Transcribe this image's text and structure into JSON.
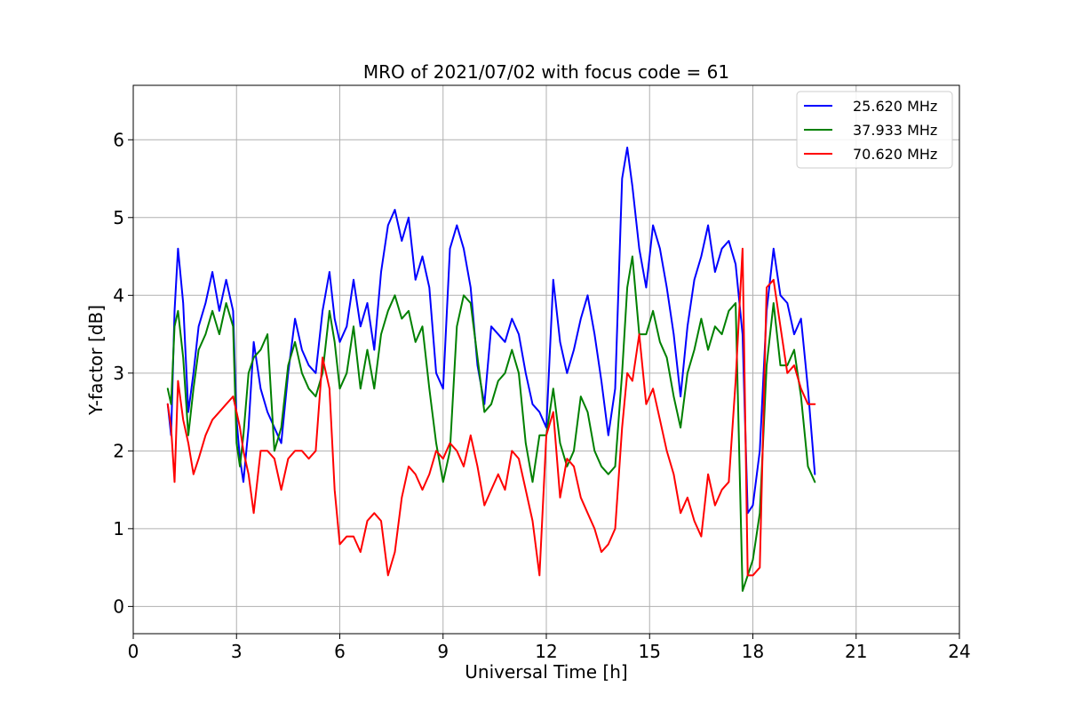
{
  "chart_data": {
    "type": "line",
    "title": "MRO of 2021/07/02 with focus code = 61",
    "xlabel": "Universal Time [h]",
    "ylabel": "Y-factor [dB]",
    "xlim": [
      0,
      24
    ],
    "ylim": [
      -0.35,
      6.7
    ],
    "xticks": [
      0,
      3,
      6,
      9,
      12,
      15,
      18,
      21,
      24
    ],
    "yticks": [
      0,
      1,
      2,
      3,
      4,
      5,
      6
    ],
    "grid": true,
    "legend_position": "top-right",
    "series": [
      {
        "name": "25.620 MHz",
        "color": "#0000ff",
        "x": [
          1.0,
          1.1,
          1.2,
          1.3,
          1.45,
          1.6,
          1.75,
          1.9,
          2.1,
          2.3,
          2.5,
          2.7,
          2.9,
          3.0,
          3.1,
          3.2,
          3.35,
          3.5,
          3.7,
          3.9,
          4.1,
          4.3,
          4.5,
          4.7,
          4.9,
          5.1,
          5.3,
          5.5,
          5.7,
          5.85,
          6.0,
          6.2,
          6.4,
          6.6,
          6.8,
          7.0,
          7.2,
          7.4,
          7.6,
          7.8,
          8.0,
          8.2,
          8.4,
          8.6,
          8.8,
          9.0,
          9.2,
          9.4,
          9.6,
          9.8,
          10.0,
          10.2,
          10.4,
          10.6,
          10.8,
          11.0,
          11.2,
          11.4,
          11.6,
          11.8,
          12.0,
          12.2,
          12.4,
          12.6,
          12.8,
          13.0,
          13.2,
          13.4,
          13.6,
          13.8,
          14.0,
          14.2,
          14.35,
          14.5,
          14.7,
          14.9,
          15.1,
          15.3,
          15.5,
          15.7,
          15.9,
          16.1,
          16.3,
          16.5,
          16.7,
          16.9,
          17.1,
          17.3,
          17.5,
          17.7,
          17.85,
          18.0,
          18.2,
          18.4,
          18.6,
          18.8,
          19.0,
          19.2,
          19.4,
          19.6,
          19.8
        ],
        "values": [
          2.6,
          2.2,
          3.8,
          4.6,
          3.9,
          2.5,
          3.0,
          3.6,
          3.9,
          4.3,
          3.8,
          4.2,
          3.8,
          2.4,
          1.9,
          1.6,
          2.3,
          3.4,
          2.8,
          2.5,
          2.3,
          2.1,
          3.0,
          3.7,
          3.3,
          3.1,
          3.0,
          3.8,
          4.3,
          3.7,
          3.4,
          3.6,
          4.2,
          3.6,
          3.9,
          3.3,
          4.3,
          4.9,
          5.1,
          4.7,
          5.0,
          4.2,
          4.5,
          4.1,
          3.0,
          2.8,
          4.6,
          4.9,
          4.6,
          4.1,
          3.1,
          2.6,
          3.6,
          3.5,
          3.4,
          3.7,
          3.5,
          3.0,
          2.6,
          2.5,
          2.3,
          4.2,
          3.4,
          3.0,
          3.3,
          3.7,
          4.0,
          3.5,
          2.9,
          2.2,
          2.8,
          5.5,
          5.9,
          5.4,
          4.6,
          4.1,
          4.9,
          4.6,
          4.1,
          3.5,
          2.7,
          3.6,
          4.2,
          4.5,
          4.9,
          4.3,
          4.6,
          4.7,
          4.4,
          3.5,
          1.2,
          1.3,
          2.0,
          3.8,
          4.6,
          4.0,
          3.9,
          3.5,
          3.7,
          2.8,
          1.7
        ]
      },
      {
        "name": "37.933 MHz",
        "color": "#008000",
        "x": [
          1.0,
          1.1,
          1.2,
          1.3,
          1.45,
          1.6,
          1.75,
          1.9,
          2.1,
          2.3,
          2.5,
          2.7,
          2.9,
          3.0,
          3.1,
          3.2,
          3.35,
          3.5,
          3.7,
          3.9,
          4.1,
          4.3,
          4.5,
          4.7,
          4.9,
          5.1,
          5.3,
          5.5,
          5.7,
          5.85,
          6.0,
          6.2,
          6.4,
          6.6,
          6.8,
          7.0,
          7.2,
          7.4,
          7.6,
          7.8,
          8.0,
          8.2,
          8.4,
          8.6,
          8.8,
          9.0,
          9.2,
          9.4,
          9.6,
          9.8,
          10.0,
          10.2,
          10.4,
          10.6,
          10.8,
          11.0,
          11.2,
          11.4,
          11.6,
          11.8,
          12.0,
          12.2,
          12.4,
          12.6,
          12.8,
          13.0,
          13.2,
          13.4,
          13.6,
          13.8,
          14.0,
          14.2,
          14.35,
          14.5,
          14.7,
          14.9,
          15.1,
          15.3,
          15.5,
          15.7,
          15.9,
          16.1,
          16.3,
          16.5,
          16.7,
          16.9,
          17.1,
          17.3,
          17.5,
          17.7,
          17.85,
          18.0,
          18.2,
          18.4,
          18.6,
          18.8,
          19.0,
          19.2,
          19.4,
          19.6,
          19.8
        ],
        "values": [
          2.8,
          2.6,
          3.6,
          3.8,
          3.2,
          2.2,
          2.8,
          3.3,
          3.5,
          3.8,
          3.5,
          3.9,
          3.6,
          2.1,
          1.8,
          2.2,
          3.0,
          3.2,
          3.3,
          3.5,
          2.0,
          2.3,
          3.1,
          3.4,
          3.0,
          2.8,
          2.7,
          3.0,
          3.8,
          3.4,
          2.8,
          3.0,
          3.6,
          2.8,
          3.3,
          2.8,
          3.5,
          3.8,
          4.0,
          3.7,
          3.8,
          3.4,
          3.6,
          2.8,
          2.1,
          1.6,
          2.0,
          3.6,
          4.0,
          3.9,
          3.2,
          2.5,
          2.6,
          2.9,
          3.0,
          3.3,
          3.0,
          2.1,
          1.6,
          2.2,
          2.2,
          2.8,
          2.1,
          1.8,
          2.0,
          2.7,
          2.5,
          2.0,
          1.8,
          1.7,
          1.8,
          3.0,
          4.1,
          4.5,
          3.5,
          3.5,
          3.8,
          3.4,
          3.2,
          2.7,
          2.3,
          3.0,
          3.3,
          3.7,
          3.3,
          3.6,
          3.5,
          3.8,
          3.9,
          0.2,
          0.4,
          0.6,
          1.2,
          3.1,
          3.9,
          3.1,
          3.1,
          3.3,
          2.7,
          1.8,
          1.6
        ]
      },
      {
        "name": "70.620 MHz",
        "color": "#ff0000",
        "x": [
          1.0,
          1.1,
          1.2,
          1.3,
          1.45,
          1.6,
          1.75,
          1.9,
          2.1,
          2.3,
          2.5,
          2.7,
          2.9,
          3.0,
          3.1,
          3.2,
          3.35,
          3.5,
          3.7,
          3.9,
          4.1,
          4.3,
          4.5,
          4.7,
          4.9,
          5.1,
          5.3,
          5.5,
          5.7,
          5.85,
          6.0,
          6.2,
          6.4,
          6.6,
          6.8,
          7.0,
          7.2,
          7.4,
          7.6,
          7.8,
          8.0,
          8.2,
          8.4,
          8.6,
          8.8,
          9.0,
          9.2,
          9.4,
          9.6,
          9.8,
          10.0,
          10.2,
          10.4,
          10.6,
          10.8,
          11.0,
          11.2,
          11.4,
          11.6,
          11.8,
          12.0,
          12.2,
          12.4,
          12.6,
          12.8,
          13.0,
          13.2,
          13.4,
          13.6,
          13.8,
          14.0,
          14.2,
          14.35,
          14.5,
          14.7,
          14.9,
          15.1,
          15.3,
          15.5,
          15.7,
          15.9,
          16.1,
          16.3,
          16.5,
          16.7,
          16.9,
          17.1,
          17.3,
          17.5,
          17.7,
          17.85,
          18.0,
          18.2,
          18.4,
          18.6,
          18.8,
          19.0,
          19.2,
          19.4,
          19.6,
          19.8
        ],
        "values": [
          2.6,
          2.3,
          1.6,
          2.9,
          2.4,
          2.1,
          1.7,
          1.9,
          2.2,
          2.4,
          2.5,
          2.6,
          2.7,
          2.5,
          2.3,
          2.0,
          1.7,
          1.2,
          2.0,
          2.0,
          1.9,
          1.5,
          1.9,
          2.0,
          2.0,
          1.9,
          2.0,
          3.2,
          2.8,
          1.5,
          0.8,
          0.9,
          0.9,
          0.7,
          1.1,
          1.2,
          1.1,
          0.4,
          0.7,
          1.4,
          1.8,
          1.7,
          1.5,
          1.7,
          2.0,
          1.9,
          2.1,
          2.0,
          1.8,
          2.2,
          1.8,
          1.3,
          1.5,
          1.7,
          1.5,
          2.0,
          1.9,
          1.5,
          1.1,
          0.4,
          2.2,
          2.5,
          1.4,
          1.9,
          1.8,
          1.4,
          1.2,
          1.0,
          0.7,
          0.8,
          1.0,
          2.3,
          3.0,
          2.9,
          3.5,
          2.6,
          2.8,
          2.4,
          2.0,
          1.7,
          1.2,
          1.4,
          1.1,
          0.9,
          1.7,
          1.3,
          1.5,
          1.6,
          2.9,
          4.6,
          0.4,
          0.4,
          0.5,
          4.1,
          4.2,
          3.6,
          3.0,
          3.1,
          2.8,
          2.6,
          2.6
        ]
      }
    ]
  }
}
